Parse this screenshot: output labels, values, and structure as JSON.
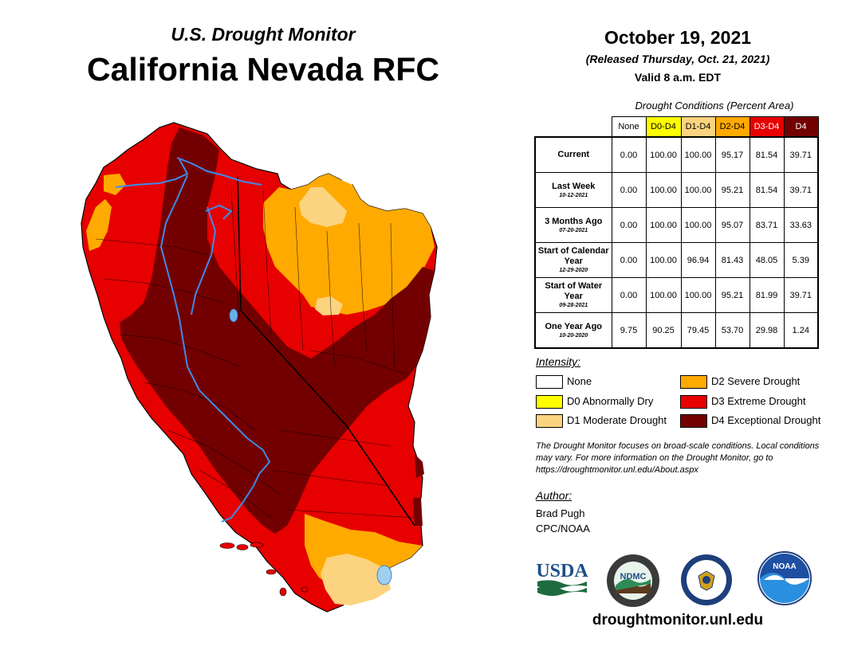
{
  "header": {
    "subtitle": "U.S. Drought Monitor",
    "title": "California Nevada RFC"
  },
  "date": "October 19, 2021",
  "released": "(Released Thursday, Oct. 21, 2021)",
  "valid": "Valid 8 a.m. EDT",
  "table": {
    "caption": "Drought Conditions (Percent Area)",
    "columns": [
      "None",
      "D0-D4",
      "D1-D4",
      "D2-D4",
      "D3-D4",
      "D4"
    ],
    "column_colors": [
      "#ffffff",
      "#ffff00",
      "#fcd37f",
      "#ffaa00",
      "#e60000",
      "#730000"
    ],
    "column_text_colors": [
      "#000000",
      "#000000",
      "#000000",
      "#000000",
      "#ffffff",
      "#ffffff"
    ],
    "rows": [
      {
        "label": "Current",
        "date": "",
        "values": [
          "0.00",
          "100.00",
          "100.00",
          "95.17",
          "81.54",
          "39.71"
        ]
      },
      {
        "label": "Last Week",
        "date": "10-12-2021",
        "values": [
          "0.00",
          "100.00",
          "100.00",
          "95.21",
          "81.54",
          "39.71"
        ]
      },
      {
        "label": "3 Months Ago",
        "date": "07-20-2021",
        "values": [
          "0.00",
          "100.00",
          "100.00",
          "95.07",
          "83.71",
          "33.63"
        ]
      },
      {
        "label": "Start of Calendar Year",
        "date": "12-29-2020",
        "values": [
          "0.00",
          "100.00",
          "96.94",
          "81.43",
          "48.05",
          "5.39"
        ]
      },
      {
        "label": "Start of Water Year",
        "date": "09-28-2021",
        "values": [
          "0.00",
          "100.00",
          "100.00",
          "95.21",
          "81.99",
          "39.71"
        ]
      },
      {
        "label": "One Year Ago",
        "date": "10-20-2020",
        "values": [
          "9.75",
          "90.25",
          "79.45",
          "53.70",
          "29.98",
          "1.24"
        ]
      }
    ]
  },
  "legend": {
    "title": "Intensity:",
    "items": [
      {
        "label": "None",
        "color": "#ffffff"
      },
      {
        "label": "D0 Abnormally Dry",
        "color": "#ffff00"
      },
      {
        "label": "D1 Moderate Drought",
        "color": "#fcd37f"
      },
      {
        "label": "D2 Severe Drought",
        "color": "#ffaa00"
      },
      {
        "label": "D3 Extreme Drought",
        "color": "#e60000"
      },
      {
        "label": "D4 Exceptional Drought",
        "color": "#730000"
      }
    ]
  },
  "note": "The Drought Monitor focuses on broad-scale conditions. Local conditions may vary. For more information on the Drought Monitor, go to https://droughtmonitor.unl.edu/About.aspx",
  "author": {
    "title": "Author:",
    "name": "Brad Pugh",
    "org": "CPC/NOAA"
  },
  "logos": {
    "usda": "USDA",
    "ndmc": "NDMC",
    "noaa": "NOAA"
  },
  "url": "droughtmonitor.unl.edu"
}
